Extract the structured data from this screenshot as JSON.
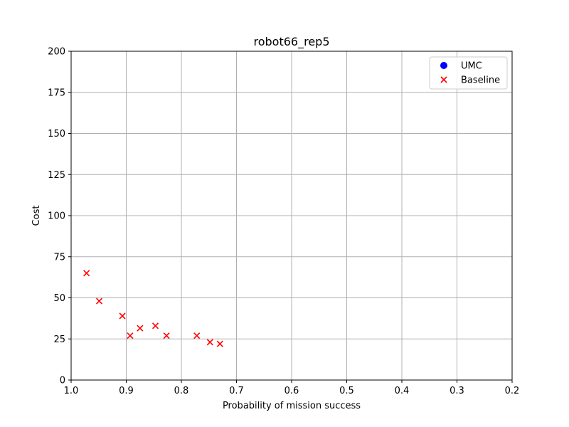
{
  "chart_data": {
    "type": "scatter",
    "title": "robot66_rep5",
    "xlabel": "Probability of mission success",
    "ylabel": "Cost",
    "xlim": [
      1.0,
      0.2
    ],
    "ylim": [
      0,
      200
    ],
    "x_inverted": true,
    "xticks": [
      "1.0",
      "0.9",
      "0.8",
      "0.7",
      "0.6",
      "0.5",
      "0.4",
      "0.3",
      "0.2"
    ],
    "yticks": [
      "0",
      "25",
      "50",
      "75",
      "100",
      "125",
      "150",
      "175",
      "200"
    ],
    "grid": true,
    "legend_position": "top-right",
    "series": [
      {
        "name": "UMC",
        "marker": "circle",
        "color": "#0000ff",
        "points": []
      },
      {
        "name": "Baseline",
        "marker": "x",
        "color": "#ff0000",
        "points": [
          {
            "x": 0.972,
            "y": 65
          },
          {
            "x": 0.949,
            "y": 48
          },
          {
            "x": 0.907,
            "y": 39
          },
          {
            "x": 0.893,
            "y": 27
          },
          {
            "x": 0.875,
            "y": 31.5
          },
          {
            "x": 0.847,
            "y": 33
          },
          {
            "x": 0.827,
            "y": 27
          },
          {
            "x": 0.772,
            "y": 27
          },
          {
            "x": 0.748,
            "y": 23
          },
          {
            "x": 0.73,
            "y": 22
          }
        ]
      }
    ]
  }
}
